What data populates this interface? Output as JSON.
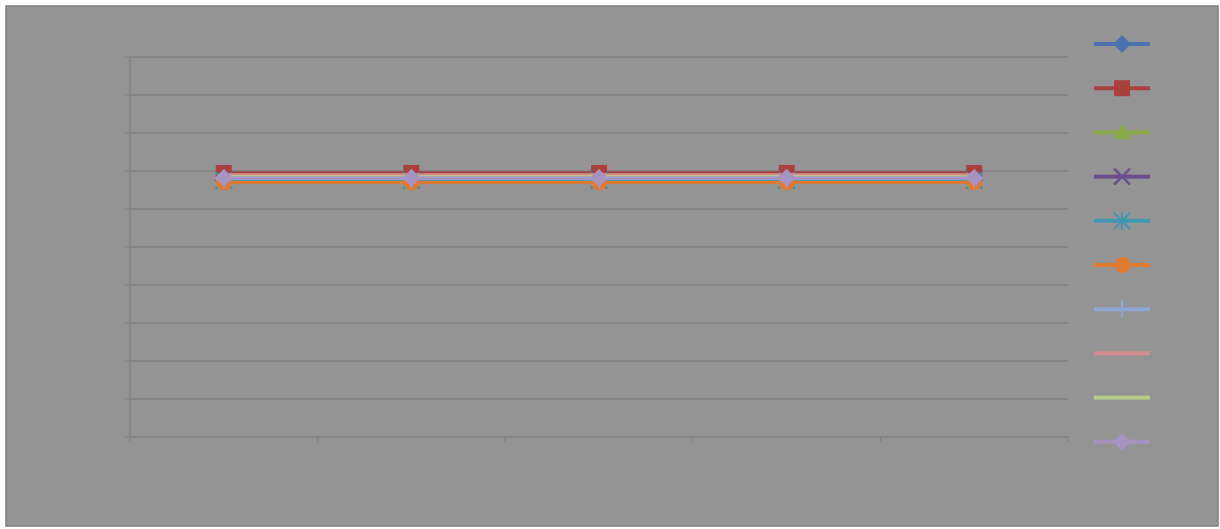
{
  "chart_data": {
    "type": "line",
    "title": "",
    "xlabel": "",
    "ylabel": "",
    "categories": [
      "",
      "",
      "",
      "",
      ""
    ],
    "ylim": [
      0,
      10
    ],
    "grid": true,
    "legend_position": "right",
    "series": [
      {
        "color": "#4a72b0",
        "marker": "diamond",
        "values": [
          6.75,
          6.75,
          6.75,
          6.75,
          6.75
        ]
      },
      {
        "color": "#a9403d",
        "marker": "square",
        "values": [
          6.95,
          6.95,
          6.95,
          6.95,
          6.95
        ]
      },
      {
        "color": "#8aaa4a",
        "marker": "triangle",
        "values": [
          6.75,
          6.75,
          6.75,
          6.75,
          6.75
        ]
      },
      {
        "color": "#6a4e8e",
        "marker": "x",
        "values": [
          6.75,
          6.75,
          6.75,
          6.75,
          6.75
        ]
      },
      {
        "color": "#3f97b2",
        "marker": "asterisk",
        "values": [
          6.75,
          6.75,
          6.75,
          6.75,
          6.75
        ]
      },
      {
        "color": "#e07a2e",
        "marker": "circle",
        "values": [
          6.7,
          6.7,
          6.7,
          6.7,
          6.7
        ]
      },
      {
        "color": "#8ea7d2",
        "marker": "plus",
        "values": [
          6.8,
          6.8,
          6.8,
          6.8,
          6.8
        ]
      },
      {
        "color": "#d28e8c",
        "marker": "none",
        "values": [
          6.9,
          6.9,
          6.9,
          6.9,
          6.9
        ]
      },
      {
        "color": "#b6cc88",
        "marker": "none",
        "values": [
          6.85,
          6.85,
          6.85,
          6.85,
          6.85
        ]
      },
      {
        "color": "#a594c2",
        "marker": "diamond",
        "values": [
          6.82,
          6.82,
          6.82,
          6.82,
          6.82
        ]
      }
    ]
  }
}
